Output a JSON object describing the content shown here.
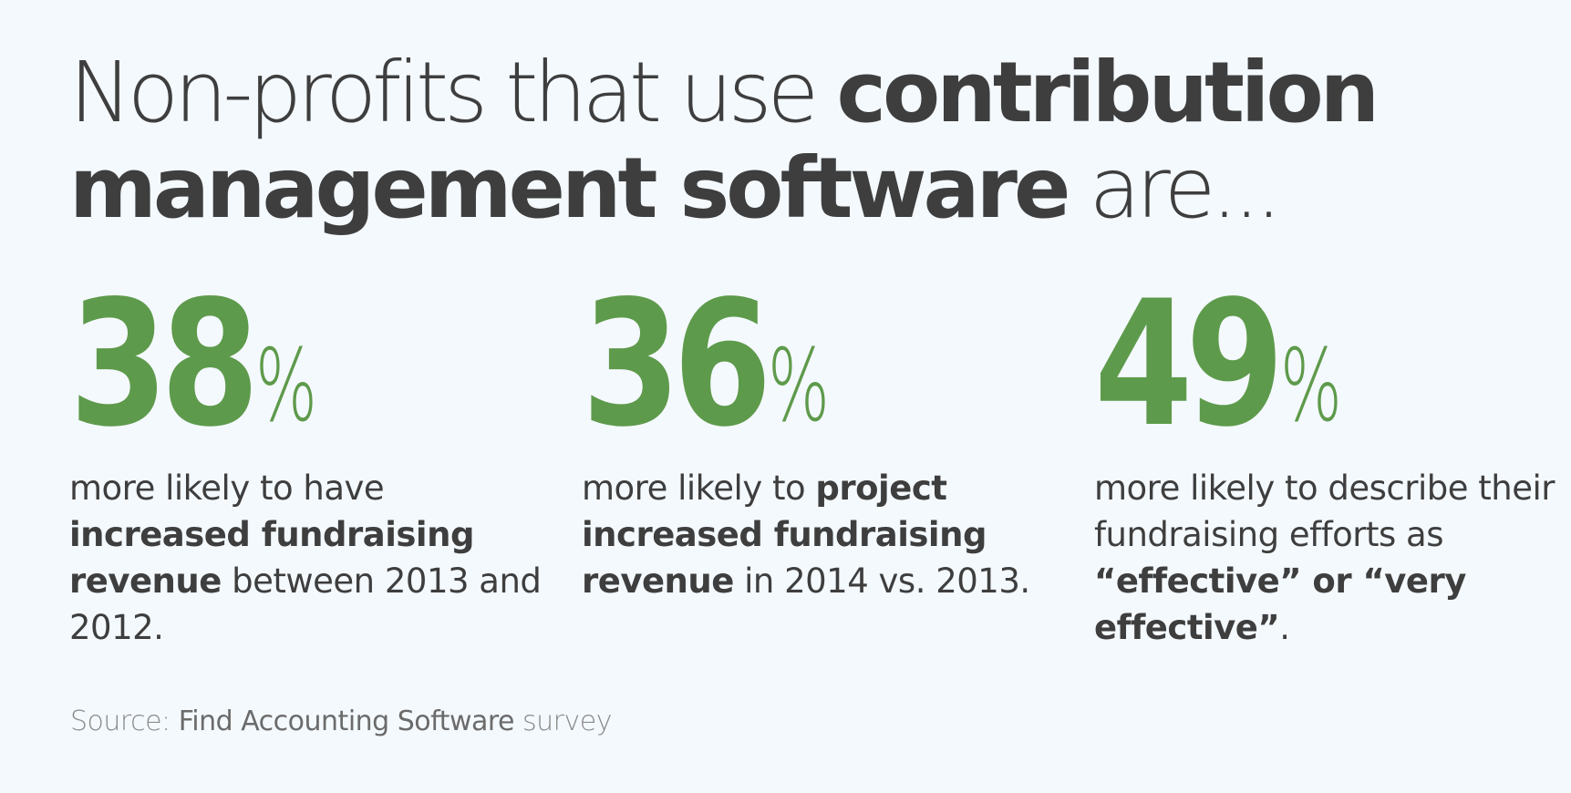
{
  "headline": {
    "line1_light": "Non-profits that use ",
    "line1_bold": "contribution",
    "line2_bold": "management software",
    "line2_light": " are..."
  },
  "stats": [
    {
      "value": "38",
      "unit": "%",
      "desc_parts": [
        {
          "text": "more likely to have ",
          "bold": false
        },
        {
          "text": "increased fundraising revenue",
          "bold": true
        },
        {
          "text": " between 2013 and 2012.",
          "bold": false
        }
      ]
    },
    {
      "value": "36",
      "unit": "%",
      "desc_parts": [
        {
          "text": "more likely to ",
          "bold": false
        },
        {
          "text": "project increased fundraising revenue",
          "bold": true
        },
        {
          "text": " in 2014 vs. 2013.",
          "bold": false
        }
      ]
    },
    {
      "value": "49",
      "unit": "%",
      "desc_parts": [
        {
          "text": "more likely to describe their fundraising efforts as ",
          "bold": false
        },
        {
          "text": "“effective” or “very effective”",
          "bold": true
        },
        {
          "text": ".",
          "bold": false
        }
      ]
    }
  ],
  "source": {
    "label": "Source: ",
    "organization": "Find Accounting Software",
    "tail": " survey"
  },
  "colors": {
    "accent_green": "#5e9a4b",
    "text_dark": "#3e3e3e",
    "background": "#f4f9fe",
    "source_gray": "#777777"
  }
}
